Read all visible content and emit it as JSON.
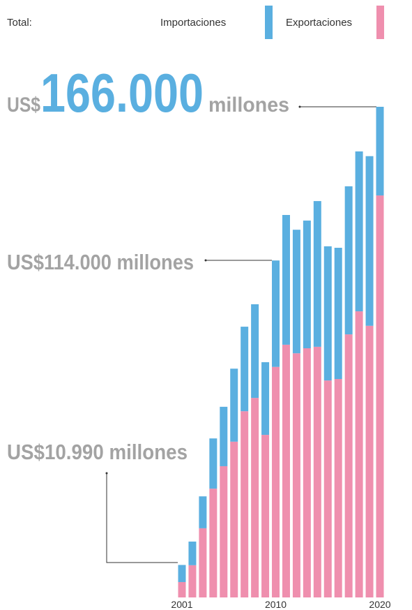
{
  "chart_data": {
    "type": "stacked-bar",
    "legend_title": "Total:",
    "categories": [
      "2001",
      null,
      null,
      null,
      null,
      null,
      null,
      null,
      null,
      "2010",
      null,
      null,
      null,
      null,
      null,
      null,
      null,
      null,
      null,
      "2020"
    ],
    "series": [
      {
        "name": "Exportaciones",
        "color": "#ef8fae",
        "values": [
          5200,
          10900,
          23400,
          36800,
          44400,
          52700,
          63000,
          67500,
          55000,
          78000,
          85500,
          82600,
          84300,
          84800,
          73400,
          73900,
          89000,
          96800,
          91900,
          136000
        ]
      },
      {
        "name": "Importaciones",
        "color": "#5aafe0",
        "values": [
          5790,
          8000,
          10800,
          17000,
          20100,
          24700,
          28600,
          31700,
          24600,
          36000,
          43900,
          41800,
          43200,
          49300,
          45400,
          44400,
          50100,
          54100,
          57400,
          30000
        ]
      }
    ],
    "annotations": [
      {
        "prefix": "US$",
        "value": "166.000",
        "suffix": "millones"
      },
      {
        "text": "US$114.000 millones"
      },
      {
        "text": "US$10.990 millones"
      }
    ]
  }
}
